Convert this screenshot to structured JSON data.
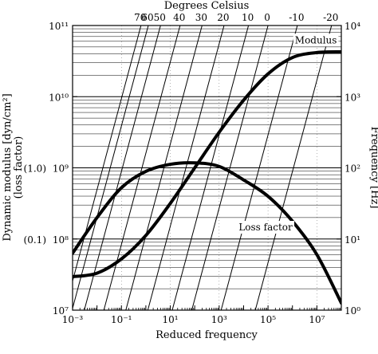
{
  "chart_data": {
    "type": "line",
    "title": "",
    "xlabel": "Reduced frequency",
    "ylabel_left": "Dynamic modulus [dyn/cm²]",
    "ylabel_left_sub": "(loss factor)",
    "ylabel_right": "Frequency [Hz]",
    "top_axis_label": "Degrees Celsius",
    "xscale": "log",
    "yscale": "log",
    "xlim": [
      -3,
      8
    ],
    "ylim_left": [
      7,
      11
    ],
    "ylim_right": [
      0,
      4
    ],
    "grid": true,
    "x_tick_labels": [
      {
        "value": -3,
        "label": "10⁻³"
      },
      {
        "value": -1,
        "label": "10⁻¹"
      },
      {
        "value": 1,
        "label": "10¹"
      },
      {
        "value": 3,
        "label": "10³"
      },
      {
        "value": 5,
        "label": "10⁵"
      },
      {
        "value": 7,
        "label": "10⁷"
      }
    ],
    "left_tick_labels": [
      {
        "value": 11,
        "label": "10¹¹"
      },
      {
        "value": 10,
        "label": "10¹⁰"
      },
      {
        "value": 9,
        "label": "10⁹",
        "prefix": "(1.0)"
      },
      {
        "value": 8,
        "label": "10⁸",
        "prefix": "(0.1)"
      },
      {
        "value": 7,
        "label": "10⁷"
      }
    ],
    "right_tick_labels": [
      {
        "value": 4,
        "label": "10⁴"
      },
      {
        "value": 3,
        "label": "10³"
      },
      {
        "value": 2,
        "label": "10²"
      },
      {
        "value": 1,
        "label": "10¹"
      },
      {
        "value": 0,
        "label": "10⁰"
      }
    ],
    "temperature_lines": [
      {
        "label": "70",
        "x_top": -0.2
      },
      {
        "label": "60",
        "x_top": 0.1
      },
      {
        "label": "50",
        "x_top": 0.6
      },
      {
        "label": "40",
        "x_top": 1.4
      },
      {
        "label": "30",
        "x_top": 2.3
      },
      {
        "label": "20",
        "x_top": 3.2
      },
      {
        "label": "10",
        "x_top": 4.2
      },
      {
        "label": "0",
        "x_top": 5.0
      },
      {
        "label": "-10",
        "x_top": 6.2
      },
      {
        "label": "-20",
        "x_top": 7.6
      }
    ],
    "temperature_line_y_span": 4.5,
    "series": [
      {
        "name": "Modulus",
        "x": [
          -3,
          -2,
          -1,
          0,
          1,
          2,
          3,
          4,
          5,
          6,
          7,
          8
        ],
        "y": [
          7.47,
          7.52,
          7.72,
          8.05,
          8.5,
          9.0,
          9.5,
          9.95,
          10.32,
          10.55,
          10.62,
          10.63
        ]
      },
      {
        "name": "Loss factor",
        "x": [
          -3,
          -2,
          -1,
          0,
          1,
          2,
          3,
          4,
          5,
          6,
          7,
          8
        ],
        "y": [
          7.8,
          8.3,
          8.72,
          8.95,
          9.05,
          9.07,
          9.02,
          8.83,
          8.6,
          8.25,
          7.78,
          7.1
        ]
      }
    ],
    "annotations": [
      {
        "text": "Modulus",
        "x": 6.1,
        "y": 10.75
      },
      {
        "text": "Loss factor",
        "x": 3.8,
        "y": 8.12
      }
    ]
  }
}
